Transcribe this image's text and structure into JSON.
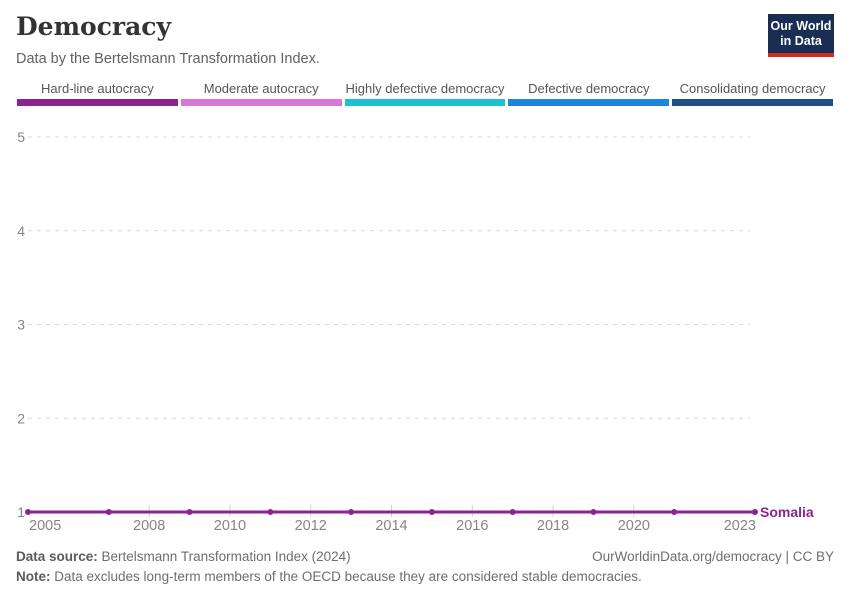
{
  "header": {
    "title": "Democracy",
    "subtitle": "Data by the Bertelsmann Transformation Index.",
    "logo": {
      "line1": "Our World",
      "line2": "in Data",
      "bg_color": "#1a2e54",
      "accent_color": "#d42b21"
    }
  },
  "legend": {
    "items": [
      {
        "label": "Hard-line autocracy",
        "color": "#8b2393"
      },
      {
        "label": "Moderate autocracy",
        "color": "#d778d4"
      },
      {
        "label": "Highly defective democracy",
        "color": "#1ec2ce"
      },
      {
        "label": "Defective democracy",
        "color": "#1e86d8"
      },
      {
        "label": "Consolidating democracy",
        "color": "#1d4f82"
      }
    ]
  },
  "chart_data": {
    "type": "line",
    "title": "Democracy",
    "subtitle": "Data by the Bertelsmann Transformation Index.",
    "series": [
      {
        "name": "Somalia",
        "color": "#8b2393",
        "x": [
          2005,
          2007,
          2009,
          2011,
          2013,
          2015,
          2017,
          2019,
          2021,
          2023
        ],
        "values": [
          1,
          1,
          1,
          1,
          1,
          1,
          1,
          1,
          1,
          1
        ]
      }
    ],
    "x_ticks": [
      2005,
      2008,
      2010,
      2012,
      2014,
      2016,
      2018,
      2020,
      2023
    ],
    "y_ticks": [
      1,
      2,
      3,
      4,
      5
    ],
    "xlim": [
      2005,
      2023
    ],
    "ylim": [
      1,
      5
    ],
    "grid": "dashed-horizontal",
    "grid_color": "#d8d8d8",
    "tick_label_color": "#858585",
    "legend_position": "end-of-line",
    "legend_entries": [
      "Hard-line autocracy",
      "Moderate autocracy",
      "Highly defective democracy",
      "Defective democracy",
      "Consolidating democracy"
    ]
  },
  "footer": {
    "source_label": "Data source:",
    "source_text": " Bertelsmann Transformation Index (2024)",
    "note_label": "Note:",
    "note_text": " Data excludes long-term members of the OECD because they are considered stable democracies.",
    "link": "OurWorldinData.org/democracy | CC BY"
  }
}
